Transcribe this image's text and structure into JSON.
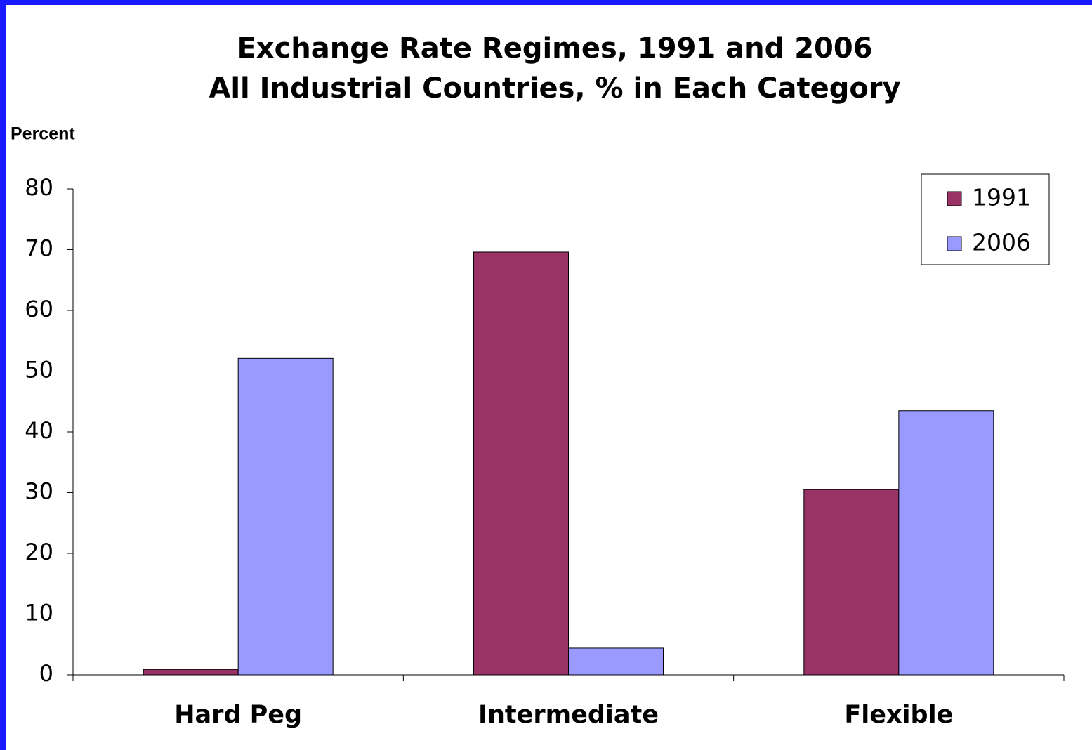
{
  "chart_data": {
    "type": "bar",
    "title": "Exchange Rate Regimes, 1991 and 2006",
    "subtitle": "All Industrial Countries, % in Each Category",
    "y_label": "Percent",
    "categories": [
      "Hard Peg",
      "Intermediate",
      "Flexible"
    ],
    "series": [
      {
        "name": "1991",
        "color": "#993366",
        "values": [
          0.9,
          69.6,
          30.5
        ]
      },
      {
        "name": "2006",
        "color": "#9999ff",
        "values": [
          52.1,
          4.4,
          43.5
        ]
      }
    ],
    "ylim": [
      0,
      80
    ],
    "yticks": [
      0,
      10,
      20,
      30,
      40,
      50,
      60,
      70,
      80
    ],
    "grid": false,
    "legend": "top-right"
  }
}
